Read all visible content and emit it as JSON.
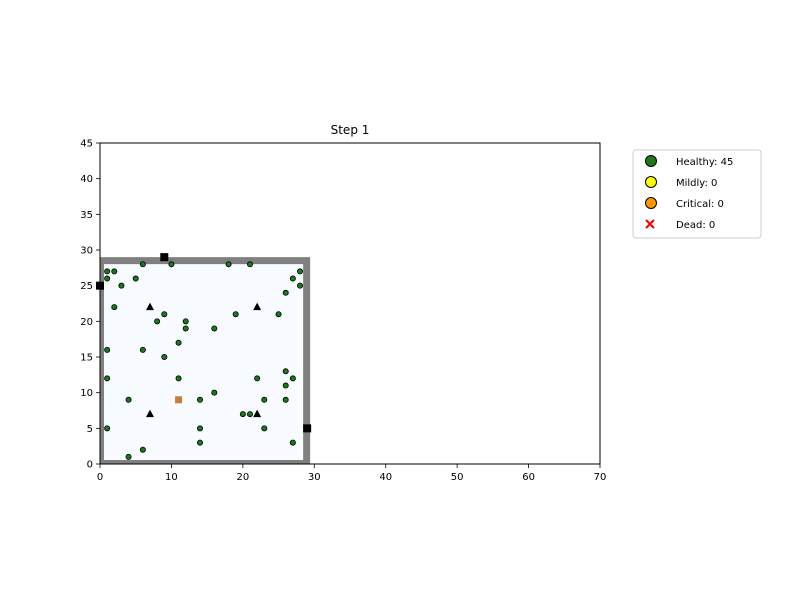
{
  "chart_data": {
    "type": "scatter",
    "title": "Step 1",
    "xlim": [
      0,
      70
    ],
    "ylim": [
      0,
      45
    ],
    "xticks": [
      "0",
      "10",
      "20",
      "30",
      "40",
      "50",
      "60",
      "70"
    ],
    "yticks": [
      "0",
      "5",
      "10",
      "15",
      "20",
      "25",
      "30",
      "35",
      "40",
      "45"
    ],
    "grid": false,
    "legend_position": "outside-top-right",
    "colors": {
      "healthy_fill": "#1a7a1a",
      "mild_fill": "#ffff00",
      "critical_fill": "#ff9900",
      "dead_marker": "#ff0000",
      "wall": "#808080",
      "room_floor": "#f8fbff",
      "door": "#000000",
      "special": "#c87d3a"
    },
    "room": {
      "x0": 0,
      "y0": 0,
      "x1": 29,
      "y1": 29
    },
    "doors": [
      [
        9,
        29
      ],
      [
        0,
        25
      ],
      [
        29,
        5
      ]
    ],
    "special_points": [
      [
        11,
        9
      ]
    ],
    "triangles": [
      [
        7,
        22
      ],
      [
        22,
        22
      ],
      [
        7,
        7
      ],
      [
        22,
        7
      ]
    ],
    "series": [
      {
        "name": "Healthy: 45",
        "marker": "circle",
        "points": [
          [
            1,
            27
          ],
          [
            2,
            27
          ],
          [
            6,
            28
          ],
          [
            10,
            28
          ],
          [
            18,
            28
          ],
          [
            21,
            28
          ],
          [
            28,
            27
          ],
          [
            1,
            26
          ],
          [
            5,
            26
          ],
          [
            27,
            26
          ],
          [
            3,
            25
          ],
          [
            28,
            25
          ],
          [
            26,
            24
          ],
          [
            2,
            22
          ],
          [
            9,
            21
          ],
          [
            19,
            21
          ],
          [
            25,
            21
          ],
          [
            8,
            20
          ],
          [
            12,
            20
          ],
          [
            12,
            19
          ],
          [
            16,
            19
          ],
          [
            11,
            17
          ],
          [
            1,
            16
          ],
          [
            6,
            16
          ],
          [
            9,
            15
          ],
          [
            26,
            13
          ],
          [
            1,
            12
          ],
          [
            11,
            12
          ],
          [
            22,
            12
          ],
          [
            27,
            12
          ],
          [
            26,
            11
          ],
          [
            16,
            10
          ],
          [
            4,
            9
          ],
          [
            14,
            9
          ],
          [
            23,
            9
          ],
          [
            26,
            9
          ],
          [
            20,
            7
          ],
          [
            21,
            7
          ],
          [
            1,
            5
          ],
          [
            14,
            5
          ],
          [
            23,
            5
          ],
          [
            14,
            3
          ],
          [
            27,
            3
          ],
          [
            6,
            2
          ],
          [
            4,
            1
          ]
        ]
      },
      {
        "name": "Mildly: 0",
        "marker": "circle",
        "points": []
      },
      {
        "name": "Critical: 0",
        "marker": "circle",
        "points": []
      },
      {
        "name": "Dead: 0",
        "marker": "x",
        "points": []
      }
    ]
  }
}
